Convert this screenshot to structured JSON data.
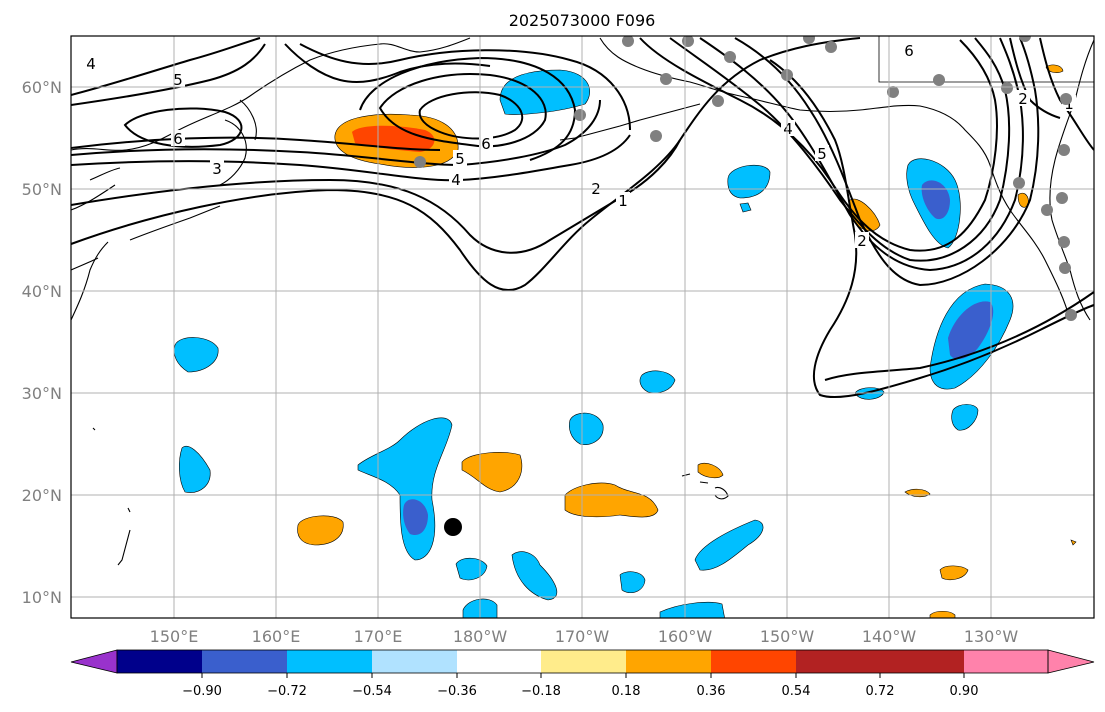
{
  "title": "2025073000 F096",
  "lat_labels": [
    "60°N",
    "50°N",
    "40°N",
    "30°N",
    "20°N",
    "10°N"
  ],
  "lon_labels": [
    "150°E",
    "160°E",
    "170°E",
    "180°W",
    "170°W",
    "160°W",
    "150°W",
    "140°W",
    "130°W"
  ],
  "colorbar": {
    "colors": [
      "#9932cc",
      "#00008b",
      "#3a5fcd",
      "#00bfff",
      "#b0e2ff",
      "#ffffff",
      "#ffec8b",
      "#ffa500",
      "#ff4500",
      "#b22222",
      "#ff82ab"
    ],
    "labels": [
      "−0.90",
      "−0.72",
      "−0.54",
      "−0.36",
      "−0.18",
      "0.18",
      "0.36",
      "0.54",
      "0.72",
      "0.90"
    ]
  },
  "contour_labels": [
    "4",
    "5",
    "6",
    "3",
    "5",
    "6",
    "4",
    "2",
    "1",
    "4",
    "5",
    "2",
    "6",
    "2",
    "1"
  ],
  "colors": {
    "neg_light": "#00bfff",
    "neg_dark": "#3a5fcd",
    "pos_light": "#ffa500",
    "pos_dark": "#ff4500",
    "grid": "#b0b0b0",
    "station": "#808080",
    "marker": "#000000"
  }
}
